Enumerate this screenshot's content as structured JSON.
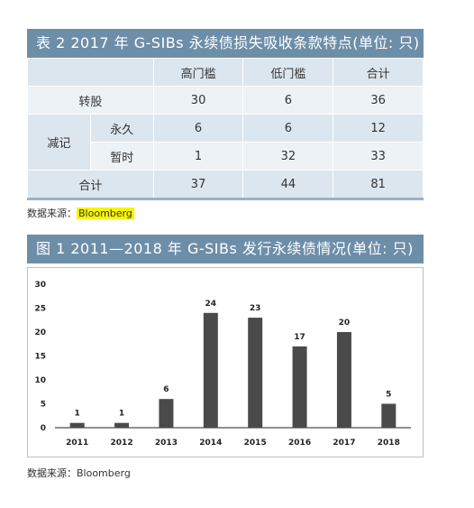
{
  "table": {
    "title": "表 2  2017 年 G-SIBs 永续债损失吸收条款特点(单位: 只)",
    "headers": [
      "高门槛",
      "低门槛",
      "合计"
    ],
    "rows": [
      {
        "label": "转股",
        "values": [
          "30",
          "6",
          "36"
        ]
      },
      {
        "group": "减记",
        "label": "永久",
        "values": [
          "6",
          "6",
          "12"
        ]
      },
      {
        "label": "暂时",
        "values": [
          "1",
          "32",
          "33"
        ]
      },
      {
        "label": "合计",
        "values": [
          "37",
          "44",
          "81"
        ]
      }
    ],
    "source_prefix": "数据来源：",
    "source_name": "Bloomberg"
  },
  "figure": {
    "title": "图 1  2011—2018 年 G-SIBs 发行永续债情况(单位: 只)",
    "source": "数据来源：Bloomberg"
  },
  "chart_data": {
    "type": "bar",
    "categories": [
      "2011",
      "2012",
      "2013",
      "2014",
      "2015",
      "2016",
      "2017",
      "2018"
    ],
    "values": [
      1,
      1,
      6,
      24,
      23,
      17,
      20,
      5
    ],
    "ylim": [
      0,
      30
    ],
    "yticks": [
      0,
      5,
      10,
      15,
      20,
      25,
      30
    ],
    "bar_color": "#4a4a4a",
    "grid": false,
    "legend": "none"
  }
}
